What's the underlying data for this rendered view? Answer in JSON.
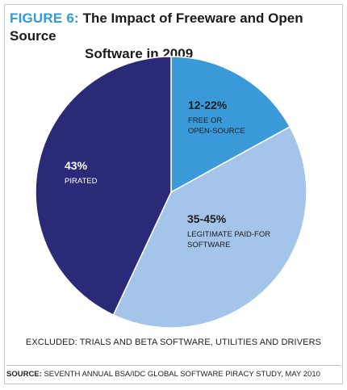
{
  "title": {
    "figure_label": "FIGURE 6:",
    "line1": "The Impact of Freeware and Open Source",
    "line2": "Software in 2009"
  },
  "chart_data": {
    "type": "pie",
    "title": "The Impact of Freeware and Open Source Software in 2009",
    "slices": [
      {
        "value_label": "12-22%",
        "label_lines": [
          "FREE OR",
          "OPEN-SOURCE"
        ],
        "value": 17,
        "color": "#3a9ad9",
        "label_color": "#1d1d1d"
      },
      {
        "value_label": "35-45%",
        "label_lines": [
          "LEGITIMATE PAID-FOR",
          "SOFTWARE"
        ],
        "value": 40,
        "color": "#a4c4ea",
        "label_color": "#1d1d1d"
      },
      {
        "value_label": "43%",
        "label_lines": [
          "PIRATED"
        ],
        "value": 43,
        "color": "#2a2a78",
        "label_color": "#ffffff"
      }
    ],
    "legend": "none"
  },
  "note": "EXCLUDED: TRIALS AND BETA SOFTWARE, UTILITIES AND DRIVERS",
  "source": {
    "label": "SOURCE:",
    "text": "SEVENTH ANNUAL BSA/IDC GLOBAL SOFTWARE PIRACY STUDY, MAY 2010"
  }
}
